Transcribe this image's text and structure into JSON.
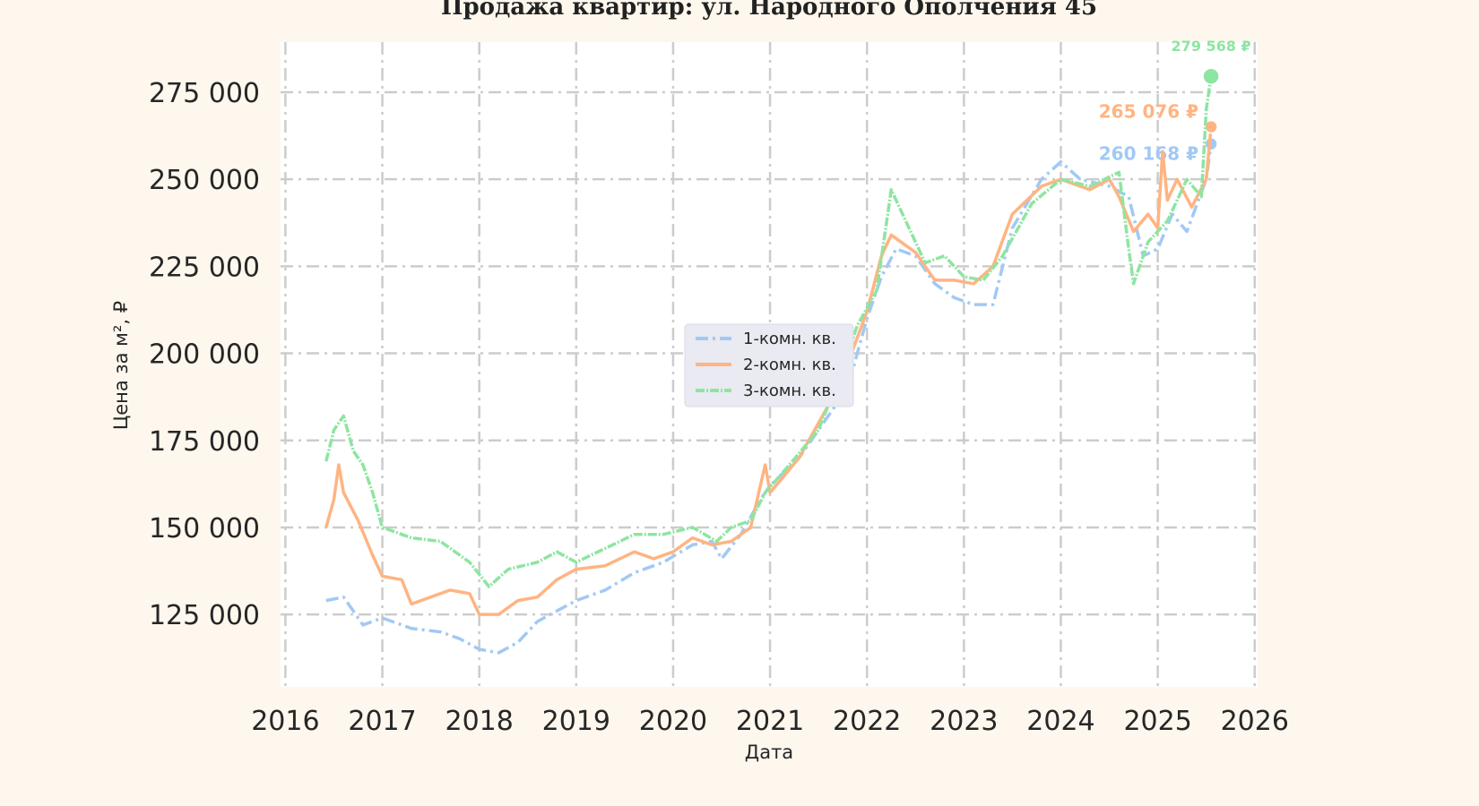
{
  "chart_data": {
    "type": "line",
    "title": "Продажа квартир: ул. Народного Ополчения 45",
    "xlabel": "Дата",
    "ylabel": "Цена за м², ₽",
    "xlim": [
      2015.95,
      2026.03
    ],
    "ylim": [
      104200,
      289400
    ],
    "x_ticks": [
      "2016",
      "2017",
      "2018",
      "2019",
      "2020",
      "2021",
      "2022",
      "2023",
      "2024",
      "2025",
      "2026"
    ],
    "y_ticks": [
      125000,
      150000,
      175000,
      200000,
      225000,
      250000,
      275000
    ],
    "y_tick_labels": [
      "125 000",
      "150 000",
      "175 000",
      "200 000",
      "225 000",
      "250 000",
      "275 000"
    ],
    "grid": true,
    "legend_position": "center",
    "colors": {
      "background": "#fef7ee",
      "plot": "#ffffff",
      "grid": "#cccccc"
    },
    "series": [
      {
        "name": "1-комн. кв.",
        "color": "#a1c9f4",
        "style": "dashed",
        "last_label": "260 168 ₽",
        "x": [
          2016.42,
          2016.6,
          2016.8,
          2017.0,
          2017.3,
          2017.6,
          2017.8,
          2018.0,
          2018.2,
          2018.4,
          2018.6,
          2018.8,
          2019.0,
          2019.3,
          2019.6,
          2019.9,
          2020.2,
          2020.4,
          2020.5,
          2020.7,
          2020.9,
          2021.0,
          2021.3,
          2021.6,
          2021.8,
          2022.0,
          2022.15,
          2022.3,
          2022.5,
          2022.7,
          2022.9,
          2023.1,
          2023.3,
          2023.5,
          2023.8,
          2024.0,
          2024.2,
          2024.5,
          2024.7,
          2024.85,
          2025.0,
          2025.15,
          2025.3,
          2025.5,
          2025.55
        ],
        "y": [
          129000,
          130000,
          122000,
          124000,
          121000,
          120000,
          118000,
          115000,
          114000,
          117000,
          123000,
          126000,
          129000,
          132000,
          137000,
          140000,
          145000,
          146000,
          141000,
          148000,
          158000,
          162000,
          170000,
          182000,
          190000,
          210000,
          222000,
          230000,
          228000,
          220000,
          216000,
          214000,
          214000,
          236000,
          250000,
          255000,
          250000,
          248000,
          245000,
          228000,
          230000,
          240000,
          235000,
          250000,
          260168
        ]
      },
      {
        "name": "2-комн. кв.",
        "color": "#ffb482",
        "style": "solid",
        "last_label": "265 076 ₽",
        "x": [
          2016.42,
          2016.5,
          2016.55,
          2016.6,
          2016.75,
          2016.9,
          2017.0,
          2017.2,
          2017.3,
          2017.5,
          2017.7,
          2017.9,
          2018.0,
          2018.2,
          2018.4,
          2018.6,
          2018.8,
          2019.0,
          2019.3,
          2019.6,
          2019.8,
          2020.0,
          2020.2,
          2020.4,
          2020.6,
          2020.8,
          2020.95,
          2021.0,
          2021.3,
          2021.6,
          2021.8,
          2022.0,
          2022.15,
          2022.25,
          2022.5,
          2022.7,
          2022.9,
          2023.1,
          2023.3,
          2023.5,
          2023.8,
          2024.0,
          2024.3,
          2024.5,
          2024.6,
          2024.75,
          2024.9,
          2025.0,
          2025.05,
          2025.1,
          2025.2,
          2025.35,
          2025.5,
          2025.55
        ],
        "y": [
          150000,
          158000,
          168000,
          160000,
          152000,
          142000,
          136000,
          135000,
          128000,
          130000,
          132000,
          131000,
          125000,
          125000,
          129000,
          130000,
          135000,
          138000,
          139000,
          143000,
          141000,
          143000,
          147000,
          145000,
          146000,
          150000,
          168000,
          160000,
          170000,
          185000,
          197000,
          212000,
          228000,
          234000,
          229000,
          221000,
          221000,
          220000,
          225000,
          240000,
          248000,
          250000,
          247000,
          250000,
          245000,
          235000,
          240000,
          236000,
          258000,
          244000,
          250000,
          242000,
          250000,
          265076
        ]
      },
      {
        "name": "3-комн. кв.",
        "color": "#8de5a1",
        "style": "dotted",
        "last_label": "279 568 ₽",
        "x": [
          2016.42,
          2016.5,
          2016.6,
          2016.7,
          2016.8,
          2016.9,
          2017.0,
          2017.3,
          2017.6,
          2017.9,
          2018.1,
          2018.3,
          2018.6,
          2018.8,
          2019.0,
          2019.3,
          2019.6,
          2019.9,
          2020.2,
          2020.45,
          2020.6,
          2020.8,
          2020.95,
          2021.2,
          2021.5,
          2021.7,
          2021.9,
          2022.1,
          2022.25,
          2022.4,
          2022.6,
          2022.8,
          2023.0,
          2023.2,
          2023.4,
          2023.7,
          2024.0,
          2024.3,
          2024.6,
          2024.7,
          2024.75,
          2024.9,
          2025.1,
          2025.3,
          2025.45,
          2025.5,
          2025.55
        ],
        "y": [
          169000,
          178000,
          182000,
          172000,
          168000,
          160000,
          150000,
          147000,
          146000,
          140000,
          133000,
          138000,
          140000,
          143000,
          140000,
          144000,
          148000,
          148000,
          150000,
          146000,
          150000,
          152000,
          160000,
          168000,
          178000,
          192000,
          208000,
          218000,
          247000,
          238000,
          226000,
          228000,
          222000,
          221000,
          228000,
          243000,
          250000,
          248000,
          252000,
          230000,
          220000,
          232000,
          238000,
          250000,
          245000,
          270000,
          279568
        ]
      }
    ]
  }
}
